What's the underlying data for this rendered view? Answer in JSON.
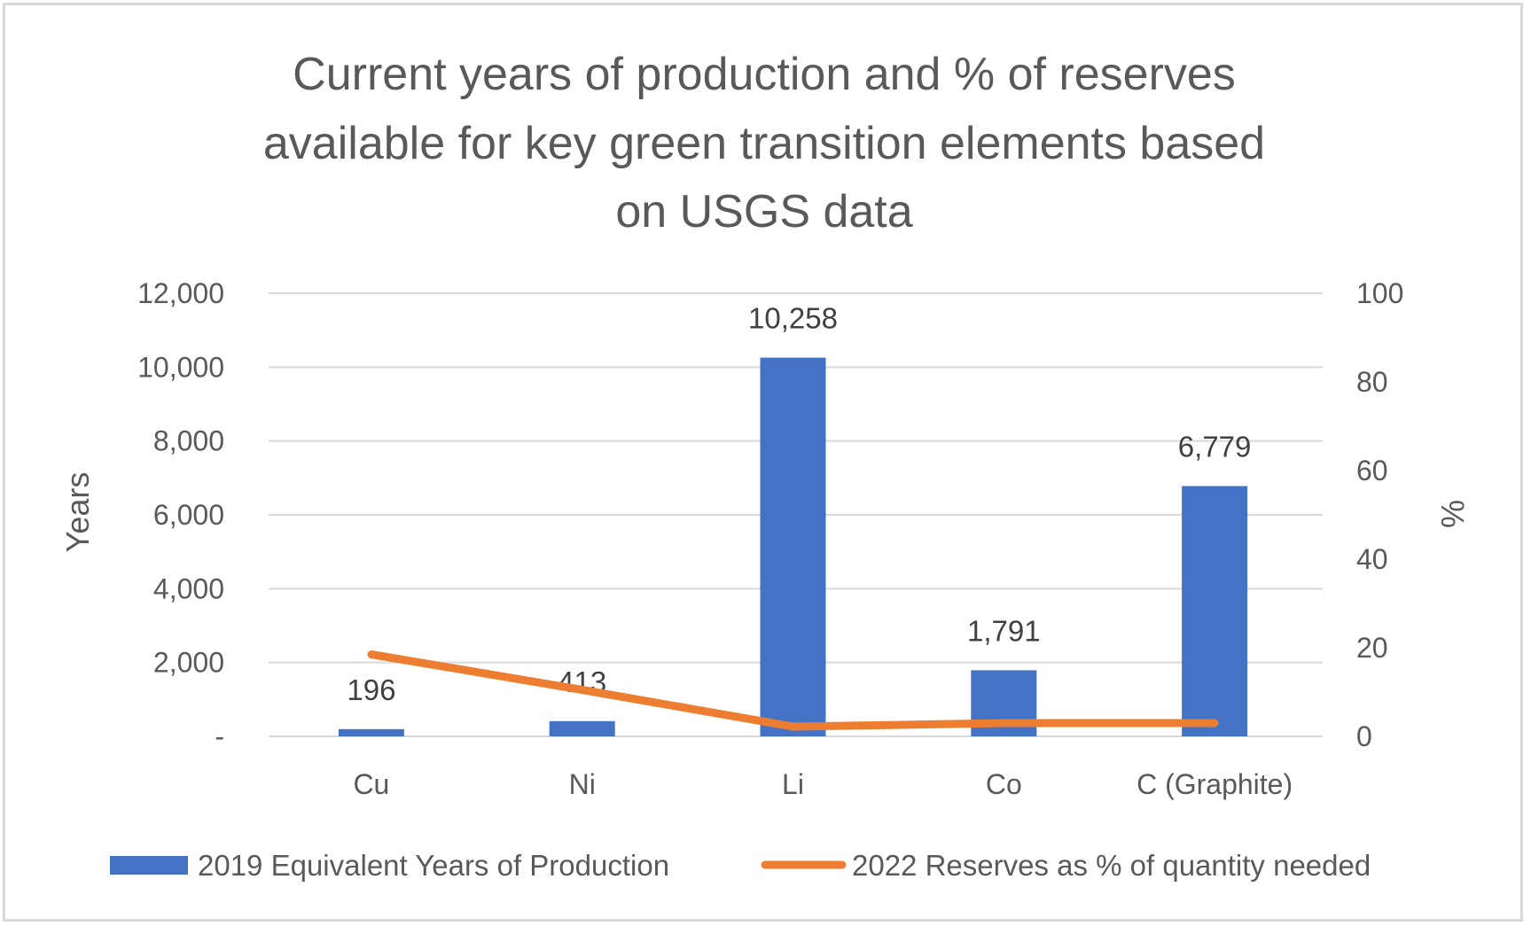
{
  "chart_data": {
    "type": "bar",
    "combo": "bar+line (secondary axis)",
    "title": "Current years of production and % of reserves available for key green transition elements based on USGS data",
    "title_lines": [
      "Current years of production and % of reserves",
      "available for key green transition elements based",
      "on USGS data"
    ],
    "categories": [
      "Cu",
      "Ni",
      "Li",
      "Co",
      "C (Graphite)"
    ],
    "series": [
      {
        "name": "2019 Equivalent Years of Production",
        "type": "bar",
        "axis": "left",
        "color": "#4472c4",
        "values": [
          196,
          413,
          10258,
          1791,
          6779
        ],
        "labels": [
          "196",
          "413",
          "10,258",
          "1,791",
          "6,779"
        ]
      },
      {
        "name": "2022 Reserves as % of quantity needed",
        "type": "line",
        "axis": "right",
        "color": "#ed7d31",
        "values": [
          18.5,
          10.5,
          2.2,
          3,
          3
        ]
      }
    ],
    "ylabel": "Years",
    "ylabel_right": "%",
    "xlabel": "",
    "ylim": [
      0,
      12000
    ],
    "ylim_right": [
      0,
      100
    ],
    "yticks": [
      0,
      2000,
      4000,
      6000,
      8000,
      10000,
      12000
    ],
    "ytick_labels": [
      "-",
      "2,000",
      "4,000",
      "6,000",
      "8,000",
      "10,000",
      "12,000"
    ],
    "yticks_right": [
      0,
      20,
      40,
      60,
      80,
      100
    ],
    "ytick_labels_right": [
      "0",
      "20",
      "40",
      "60",
      "80",
      "100"
    ],
    "grid": true,
    "gridline_color": "#d9d9d9",
    "legend_position": "bottom"
  }
}
